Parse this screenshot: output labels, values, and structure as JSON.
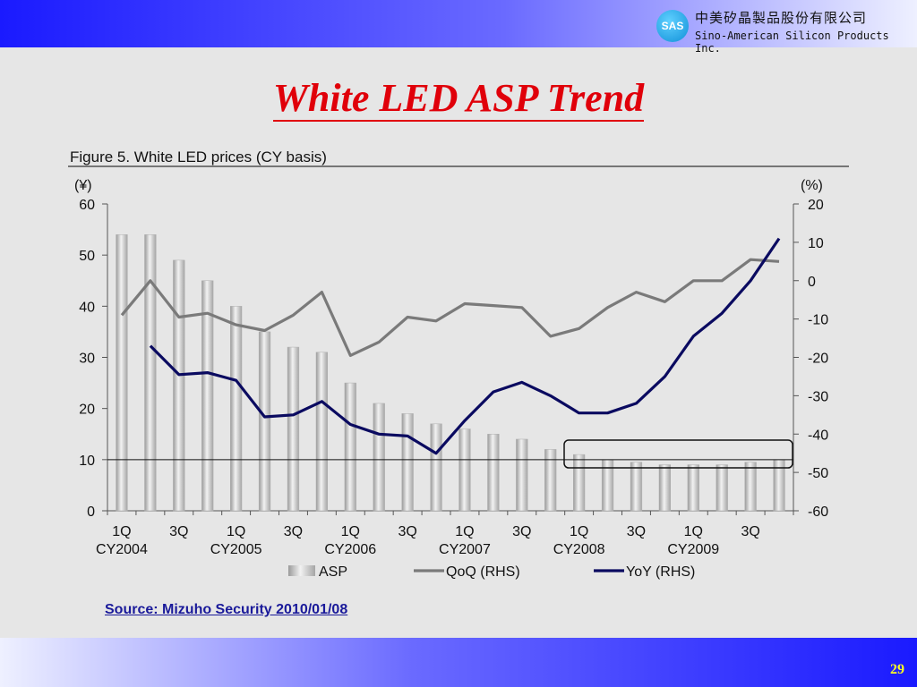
{
  "header": {
    "logo_text": "SAS",
    "company_cn": "中美矽晶製品股份有限公司",
    "company_en": "Sino-American Silicon Products Inc."
  },
  "slide": {
    "title": "White LED ASP Trend",
    "source": "Source: Mizuho Security 2010/01/08",
    "page_number": "29"
  },
  "chart_data": {
    "type": "bar",
    "title": "Figure 5. White LED prices (CY basis)",
    "left_unit": "(¥)",
    "right_unit": "(%)",
    "categories": [
      "1Q04",
      "2Q04",
      "3Q04",
      "4Q04",
      "1Q05",
      "2Q05",
      "3Q05",
      "4Q05",
      "1Q06",
      "2Q06",
      "3Q06",
      "4Q06",
      "1Q07",
      "2Q07",
      "3Q07",
      "4Q07",
      "1Q08",
      "2Q08",
      "3Q08",
      "4Q08",
      "1Q09",
      "2Q09",
      "3Q09",
      "4Q09"
    ],
    "x_tick_labels": [
      {
        "q": "1Q",
        "year": "CY2004",
        "index": 0
      },
      {
        "q": "3Q",
        "year": "",
        "index": 2
      },
      {
        "q": "1Q",
        "year": "CY2005",
        "index": 4
      },
      {
        "q": "3Q",
        "year": "",
        "index": 6
      },
      {
        "q": "1Q",
        "year": "CY2006",
        "index": 8
      },
      {
        "q": "3Q",
        "year": "",
        "index": 10
      },
      {
        "q": "1Q",
        "year": "CY2007",
        "index": 12
      },
      {
        "q": "3Q",
        "year": "",
        "index": 14
      },
      {
        "q": "1Q",
        "year": "CY2008",
        "index": 16
      },
      {
        "q": "3Q",
        "year": "",
        "index": 18
      },
      {
        "q": "1Q",
        "year": "CY2009",
        "index": 20
      },
      {
        "q": "3Q",
        "year": "",
        "index": 22
      }
    ],
    "ylim_left": [
      0,
      60
    ],
    "ylim_right": [
      -60,
      20
    ],
    "yticks_left": [
      0,
      10,
      20,
      30,
      40,
      50,
      60
    ],
    "yticks_right": [
      -60,
      -50,
      -40,
      -30,
      -20,
      -10,
      0,
      10,
      20
    ],
    "reference_line_left": 10,
    "series": [
      {
        "name": "ASP",
        "axis": "left",
        "kind": "bar",
        "color": "#bdbdbd",
        "values": [
          54,
          54,
          49,
          45,
          40,
          35,
          32,
          31,
          25,
          21,
          19,
          17,
          16,
          15,
          14,
          12,
          11,
          10,
          9.5,
          9,
          9,
          9,
          9.5,
          10
        ]
      },
      {
        "name": "QoQ (RHS)",
        "axis": "right",
        "kind": "line",
        "color": "#7a7a7a",
        "values": [
          -9,
          0,
          -9.5,
          -8.5,
          -11.5,
          -13,
          -9,
          -3,
          -19.5,
          -16,
          -9.5,
          -10.5,
          -6,
          -6.5,
          -7,
          -14.5,
          -12.5,
          -7,
          -3,
          -5.5,
          0,
          0,
          5.5,
          5
        ]
      },
      {
        "name": "YoY (RHS)",
        "axis": "right",
        "kind": "line",
        "color": "#0a0a60",
        "values": [
          null,
          -17,
          -24.5,
          -24,
          -26,
          -35.5,
          -35,
          -31.5,
          -37.5,
          -40,
          -40.5,
          -45,
          -36.5,
          -29,
          -26.5,
          -30,
          -34.5,
          -34.5,
          -32,
          -25,
          -14.5,
          -8.5,
          0,
          11
        ]
      }
    ]
  }
}
